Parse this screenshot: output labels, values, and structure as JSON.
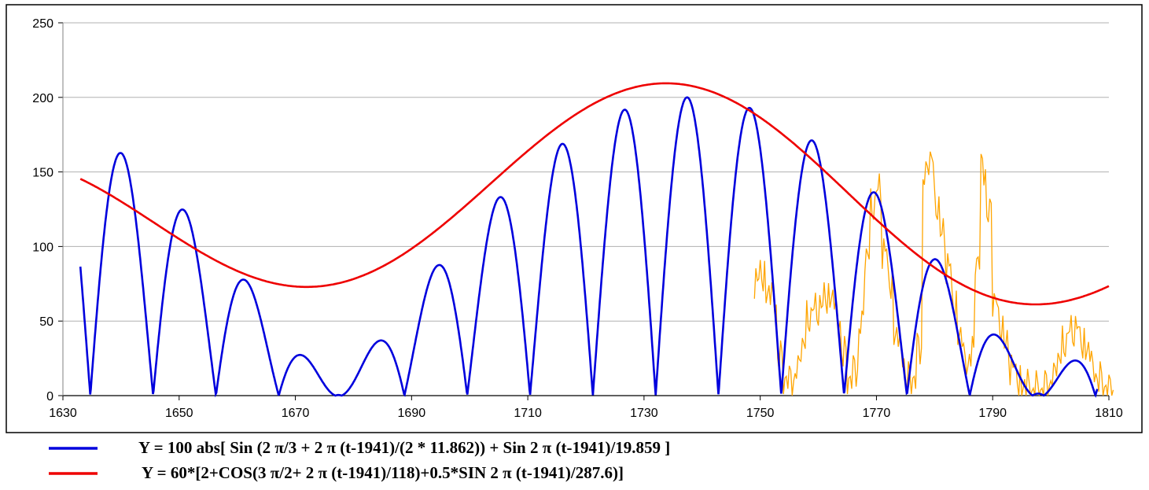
{
  "chart_data": {
    "type": "line",
    "xlim": [
      1630,
      1810
    ],
    "ylim": [
      0,
      250
    ],
    "x_ticks": [
      1630,
      1650,
      1670,
      1690,
      1710,
      1730,
      1750,
      1770,
      1790,
      1810
    ],
    "y_ticks": [
      0,
      50,
      100,
      150,
      200,
      250
    ],
    "grid": "horizontal",
    "legend_position": "bottom",
    "series": [
      {
        "name": "Y = 100 abs[ Sin (2 π/3 + 2 π (t-1941)/(2 * 11.862)) + Sin 2 π (t-1941)/19.859 ]",
        "color": "#0000dd",
        "model": "Y = 100*abs(sin(2*pi/3 + 2*pi*(t-1941)/(2*11.862)) + sin(2*pi*(t-1941)/19.859))",
        "x_range": [
          1633,
          1808
        ]
      },
      {
        "name": "Y = 60*[2+COS(3 π/2+ 2 π (t-1941)/118)+0.5*SIN 2 π (t-1941)/287.6)]",
        "color": "#ee0000",
        "model": "Y = 60*(2 + cos(3*pi/2 + 2*pi*(t-1941)/118) + 0.5*sin(2*pi*(t-1941)/287.6))",
        "x_range": [
          1633,
          1810
        ]
      },
      {
        "color": "#ffa500",
        "x_range": [
          1749,
          1810
        ],
        "x": [
          1749,
          1750,
          1751,
          1752,
          1753,
          1754,
          1755,
          1756,
          1757,
          1758,
          1759,
          1760,
          1761,
          1762,
          1763,
          1764,
          1765,
          1766,
          1767,
          1768,
          1769,
          1770,
          1771,
          1772,
          1773,
          1774,
          1775,
          1776,
          1777,
          1778,
          1779,
          1780,
          1781,
          1782,
          1783,
          1784,
          1785,
          1786,
          1787,
          1788,
          1789,
          1790,
          1791,
          1792,
          1793,
          1794,
          1795,
          1796,
          1797,
          1798,
          1799,
          1800,
          1801,
          1802,
          1803,
          1804,
          1805,
          1806,
          1807,
          1808,
          1809,
          1810
        ],
        "values": [
          80,
          85,
          68,
          61,
          22,
          10,
          8,
          15,
          35,
          55,
          60,
          62,
          70,
          65,
          50,
          25,
          10,
          15,
          45,
          95,
          130,
          140,
          100,
          80,
          40,
          25,
          8,
          10,
          30,
          145,
          160,
          130,
          110,
          90,
          65,
          40,
          20,
          25,
          90,
          150,
          120,
          65,
          50,
          35,
          22,
          15,
          5,
          3,
          2,
          2,
          5,
          10,
          25,
          38,
          45,
          48,
          40,
          30,
          15,
          8,
          4,
          2
        ]
      }
    ]
  }
}
